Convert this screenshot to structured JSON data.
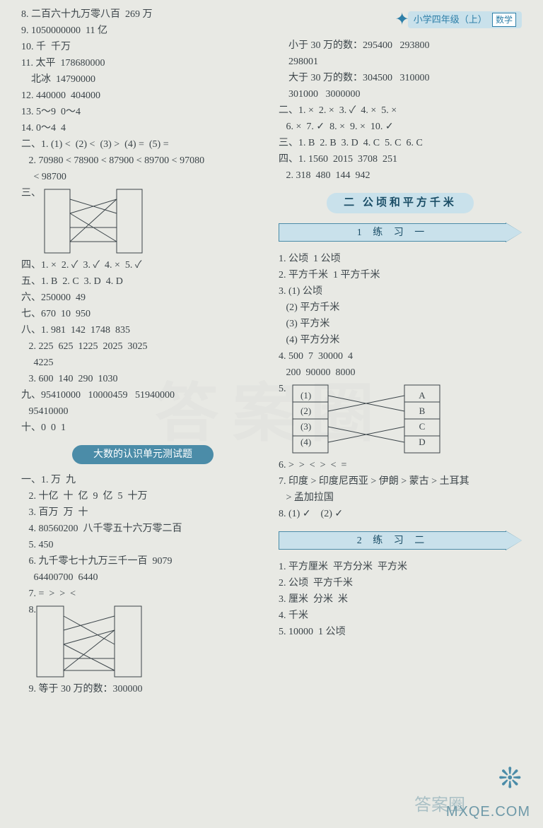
{
  "header": {
    "grade": "小学四年级（上）",
    "subject": "数学"
  },
  "left": {
    "l8": "8. 二百六十九万零八百  269 万",
    "l9": "9. 1050000000  11 亿",
    "l10": "10. 千  千万",
    "l11a": "11. 太平  178680000",
    "l11b": "    北冰  14790000",
    "l12": "12. 440000  404000",
    "l13": "13. 5～9  0～4",
    "l14": "14. 0～4  4",
    "sec2_1": "二、1. (1) <  (2) <  (3) >  (4) =  (5) =",
    "sec2_2": "   2. 70980 < 78900 < 87900 < 89700 < 97080",
    "sec2_3": "     < 98700",
    "sec3_label": "三、",
    "sec4": "四、1. ×  2. ✓  3. ✓  4. ×  5. ✓",
    "sec5": "五、1. B  2. C  3. D  4. D",
    "sec6": "六、250000  49",
    "sec7": "七、670  10  950",
    "sec8_1": "八、1. 981  142  1748  835",
    "sec8_2": "   2. 225  625  1225  2025  3025",
    "sec8_3": "     4225",
    "sec8_4": "   3. 600  140  290  1030",
    "sec9_1": "九、95410000   10000459   51940000",
    "sec9_2": "   95410000",
    "sec10": "十、0  0  1",
    "unit_title": "大数的认识单元测试题",
    "u1_1": "一、1. 万  九",
    "u1_2": "   2. 十亿  十  亿  9  亿  5  十万",
    "u1_3": "   3. 百万  万  十",
    "u1_4": "   4. 80560200  八千零五十六万零二百",
    "u1_5": "   5. 450",
    "u1_6a": "   6. 九千零七十九万三千一百  9079",
    "u1_6b": "     64400700  6440",
    "u1_7": "   7. =  >  >  <",
    "u1_8": "   8.",
    "u1_9": "   9. 等于 30 万的数：300000"
  },
  "right": {
    "r_lt30a": "    小于 30 万的数：295400   293800",
    "r_lt30b": "    298001",
    "r_gt30a": "    大于 30 万的数：304500   310000",
    "r_gt30b": "    301000   3000000",
    "r2": "二、1. ×  2. ×  3. ✓  4. ×  5. ×",
    "r2b": "   6. ×  7. ✓  8. ×  9. ×  10. ✓",
    "r3": "三、1. B  2. B  3. D  4. C  5. C  6. C",
    "r4_1": "四、1. 1560  2015  3708  251",
    "r4_2": "   2. 318  480  144  942",
    "chapter": "二  公顷和平方千米",
    "ex1_title": "1  练  习  一",
    "e1_1": "1. 公顷  1 公顷",
    "e1_2": "2. 平方千米  1 平方千米",
    "e1_3a": "3. (1) 公顷",
    "e1_3b": "   (2) 平方千米",
    "e1_3c": "   (3) 平方米",
    "e1_3d": "   (4) 平方分米",
    "e1_4a": "4. 500  7  30000  4",
    "e1_4b": "   200  90000  8000",
    "e1_5": "5.",
    "e1_6": "6. >  >  <  >  <  =",
    "e1_7a": "7. 印度 > 印度尼西亚 > 伊朗 > 蒙古 > 土耳其",
    "e1_7b": "   > 孟加拉国",
    "e1_8": "8. (1) ✓    (2) ✓",
    "ex2_title": "2  练  习  二",
    "e2_1": "1. 平方厘米  平方分米  平方米",
    "e2_2": "2. 公顷  平方千米",
    "e2_3": "3. 厘米  分米  米",
    "e2_4": "4. 千米",
    "e2_5": "5. 10000  1 公顷"
  },
  "diagrams": {
    "match3": {
      "left_h": 90,
      "right_h": 90,
      "width": 140,
      "leftPts": [
        15,
        35,
        55,
        75
      ],
      "rightPts": [
        15,
        35,
        55,
        75
      ],
      "edges": [
        [
          0,
          1
        ],
        [
          1,
          0
        ],
        [
          1,
          3
        ],
        [
          2,
          2
        ],
        [
          3,
          0
        ],
        [
          3,
          3
        ]
      ]
    },
    "match8": {
      "left_h": 100,
      "right_h": 100,
      "width": 150,
      "leftPts": [
        15,
        35,
        55,
        75,
        92
      ],
      "rightPts": [
        15,
        35,
        55,
        75,
        92
      ],
      "edges": [
        [
          0,
          2
        ],
        [
          1,
          0
        ],
        [
          2,
          4
        ],
        [
          2,
          1
        ],
        [
          3,
          3
        ],
        [
          4,
          1
        ],
        [
          4,
          4
        ]
      ]
    },
    "match5": {
      "left_labels": [
        "(1)",
        "(2)",
        "(3)",
        "(4)"
      ],
      "right_labels": [
        "A",
        "B",
        "C",
        "D"
      ],
      "leftPts": [
        16,
        38,
        60,
        82
      ],
      "rightPts": [
        16,
        38,
        60,
        82
      ],
      "edges": [
        [
          0,
          1
        ],
        [
          1,
          0
        ],
        [
          2,
          3
        ],
        [
          3,
          2
        ]
      ]
    }
  },
  "footer": {
    "site": "MXQE.COM",
    "corner": "答案圈"
  }
}
